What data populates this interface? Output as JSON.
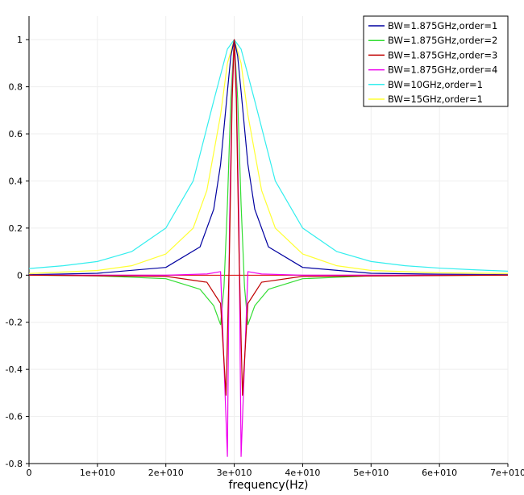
{
  "chart_data": {
    "type": "line",
    "title": "",
    "xlabel": "frequency(Hz)",
    "ylabel": "",
    "xlim": [
      0,
      70000000000
    ],
    "ylim": [
      -0.8,
      1.1
    ],
    "grid": true,
    "legend": "top-right",
    "x_ticks": [
      0,
      10000000000,
      20000000000,
      30000000000,
      40000000000,
      50000000000,
      60000000000,
      70000000000
    ],
    "x_tick_labels": [
      "0",
      "1e+010",
      "2e+010",
      "3e+010",
      "4e+010",
      "5e+010",
      "6e+010",
      "7e+010"
    ],
    "y_ticks": [
      -0.8,
      -0.6,
      -0.4,
      -0.2,
      0,
      0.2,
      0.4,
      0.6,
      0.8,
      1
    ],
    "y_tick_labels": [
      "-0.8",
      "-0.6",
      "-0.4",
      "-0.2",
      "0",
      "0.2",
      "0.4",
      "0.6",
      "0.8",
      "1"
    ],
    "series": [
      {
        "name": "BW=1.875GHz,order=1",
        "color": "#0000a0",
        "x": [
          0,
          10000000000,
          20000000000,
          25000000000,
          27000000000,
          28000000000,
          29000000000,
          29500000000,
          30000000000,
          30500000000,
          31000000000,
          32000000000,
          33000000000,
          35000000000,
          40000000000,
          50000000000,
          60000000000,
          70000000000
        ],
        "y": [
          0.002,
          0.008,
          0.033,
          0.12,
          0.28,
          0.47,
          0.78,
          0.93,
          1.0,
          0.93,
          0.78,
          0.47,
          0.28,
          0.12,
          0.033,
          0.008,
          0.004,
          0.002
        ]
      },
      {
        "name": "BW=1.875GHz,order=2",
        "color": "#33dd33",
        "x": [
          0,
          10000000000,
          20000000000,
          25000000000,
          27000000000,
          28000000000,
          28500000000,
          29000000000,
          29500000000,
          30000000000,
          30500000000,
          31000000000,
          31500000000,
          32000000000,
          33000000000,
          35000000000,
          40000000000,
          50000000000,
          60000000000,
          70000000000
        ],
        "y": [
          0.0,
          -0.003,
          -0.015,
          -0.06,
          -0.13,
          -0.21,
          -0.05,
          0.3,
          0.75,
          1.0,
          0.75,
          0.3,
          -0.05,
          -0.21,
          -0.13,
          -0.06,
          -0.015,
          -0.003,
          -0.001,
          0.0
        ]
      },
      {
        "name": "BW=1.875GHz,order=3",
        "color": "#c00000",
        "x": [
          0,
          20000000000,
          26000000000,
          28000000000,
          28800000000,
          29300000000,
          29700000000,
          30000000000,
          30300000000,
          30700000000,
          31200000000,
          32000000000,
          34000000000,
          40000000000,
          70000000000
        ],
        "y": [
          0.0,
          -0.005,
          -0.03,
          -0.12,
          -0.51,
          0.1,
          0.75,
          1.0,
          0.75,
          0.1,
          -0.51,
          -0.12,
          -0.03,
          -0.005,
          0.0
        ]
      },
      {
        "name": "BW=1.875GHz,order=4",
        "color": "#ee00ee",
        "x": [
          0,
          20000000000,
          26000000000,
          28000000000,
          29000000000,
          29300000000,
          29700000000,
          30000000000,
          30300000000,
          30700000000,
          31000000000,
          32000000000,
          34000000000,
          40000000000,
          70000000000
        ],
        "y": [
          0.0,
          0.0,
          0.005,
          0.015,
          -0.77,
          0.2,
          0.8,
          1.0,
          0.8,
          0.2,
          -0.77,
          0.015,
          0.005,
          0.0,
          0.0
        ]
      },
      {
        "name": "BW=10GHz,order=1",
        "color": "#33eeee",
        "x": [
          0,
          5000000000,
          10000000000,
          15000000000,
          20000000000,
          24000000000,
          27000000000,
          29000000000,
          30000000000,
          31000000000,
          33000000000,
          36000000000,
          40000000000,
          45000000000,
          50000000000,
          55000000000,
          60000000000,
          65000000000,
          70000000000
        ],
        "y": [
          0.028,
          0.04,
          0.058,
          0.1,
          0.2,
          0.4,
          0.74,
          0.96,
          1.0,
          0.96,
          0.74,
          0.4,
          0.2,
          0.1,
          0.058,
          0.04,
          0.03,
          0.023,
          0.017
        ]
      },
      {
        "name": "BW=15GHz,order=1",
        "color": "#ffff33",
        "x": [
          0,
          10000000000,
          15000000000,
          20000000000,
          24000000000,
          26000000000,
          28000000000,
          29000000000,
          30000000000,
          31000000000,
          32000000000,
          34000000000,
          36000000000,
          40000000000,
          45000000000,
          50000000000,
          60000000000,
          70000000000
        ],
        "y": [
          0.007,
          0.02,
          0.04,
          0.09,
          0.2,
          0.36,
          0.68,
          0.9,
          1.0,
          0.9,
          0.68,
          0.36,
          0.2,
          0.09,
          0.04,
          0.02,
          0.01,
          0.007
        ]
      }
    ]
  }
}
